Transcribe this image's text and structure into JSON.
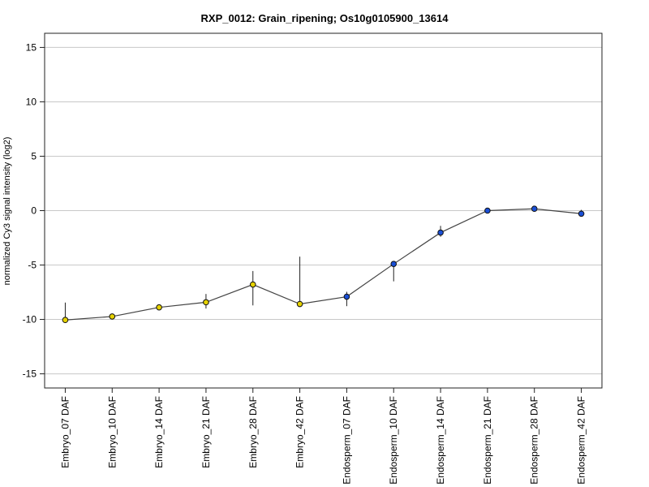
{
  "chart_data": {
    "type": "line",
    "title": "RXP_0012: Grain_ripening; Os10g0105900_13614",
    "xlabel": "",
    "ylabel": "normalized Cy3 signal intensity (log2)",
    "ylim": [
      -16.3,
      16.3
    ],
    "yticks": [
      -15,
      -10,
      -5,
      0,
      5,
      10,
      15
    ],
    "grid": "horizontal",
    "categories": [
      "Embryo_07 DAF",
      "Embryo_10 DAF",
      "Embryo_14 DAF",
      "Embryo_21 DAF",
      "Embryo_28 DAF",
      "Embryo_42 DAF",
      "Endosperm_07 DAF",
      "Endosperm_10 DAF",
      "Endosperm_14 DAF",
      "Endosperm_21 DAF",
      "Endosperm_28 DAF",
      "Endosperm_42 DAF"
    ],
    "values": [
      -10.05,
      -9.73,
      -8.89,
      -8.42,
      -6.79,
      -8.58,
      -7.91,
      -4.9,
      -2.02,
      0.0,
      0.17,
      -0.28
    ],
    "error_low": [
      -10.05,
      -9.8,
      -8.95,
      -9.0,
      -8.71,
      -8.58,
      -8.78,
      -6.5,
      -2.4,
      -0.05,
      0.1,
      -0.35
    ],
    "error_high": [
      -8.45,
      -9.65,
      -8.83,
      -7.66,
      -5.55,
      -4.23,
      -7.46,
      -4.9,
      -1.4,
      0.05,
      0.25,
      0.07
    ],
    "point_colors": [
      "#e6d200",
      "#e6d200",
      "#e6d200",
      "#e6d200",
      "#e6d200",
      "#e6d200",
      "#1a4fd6",
      "#1a4fd6",
      "#1a4fd6",
      "#1a4fd6",
      "#1a4fd6",
      "#1a4fd6"
    ],
    "line_color": "#444444",
    "grid_color": "#c8c8c8"
  }
}
